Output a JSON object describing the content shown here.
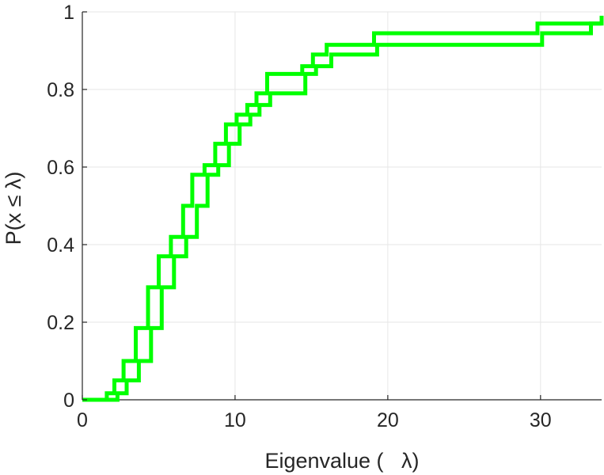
{
  "chart_data": {
    "type": "line",
    "title": "",
    "xlabel": "Eigenvalue (   λ)",
    "ylabel": "P(x ≤ λ)",
    "xlim": [
      0,
      34
    ],
    "ylim": [
      0,
      1
    ],
    "grid": true,
    "legend": "none",
    "x_ticks": [
      0,
      10,
      20,
      30
    ],
    "y_ticks": [
      0,
      0.2,
      0.4,
      0.6,
      0.8,
      1
    ],
    "x_tick_labels": [
      "0",
      "10",
      "20",
      "30"
    ],
    "y_tick_labels": [
      "0",
      "0.2",
      "0.4",
      "0.6",
      "0.8",
      "1"
    ],
    "series": [
      {
        "color": "#00ff00",
        "upper": {
          "x": [
            0,
            1.6,
            2.1,
            2.7,
            3.5,
            4.3,
            5.0,
            5.8,
            6.6,
            7.2,
            8.0,
            8.7,
            9.4,
            10.1,
            10.8,
            11.4,
            12.1,
            14.4,
            15.1,
            16.0,
            19.1,
            29.8,
            34
          ],
          "y": [
            0,
            0.017,
            0.05,
            0.1,
            0.185,
            0.29,
            0.37,
            0.42,
            0.5,
            0.58,
            0.605,
            0.66,
            0.71,
            0.735,
            0.76,
            0.79,
            0.84,
            0.86,
            0.89,
            0.915,
            0.945,
            0.97,
            0.99
          ]
        },
        "lower": {
          "x": [
            0,
            1.8,
            2.3,
            2.9,
            3.7,
            4.5,
            5.2,
            6.0,
            6.8,
            7.5,
            8.2,
            8.9,
            9.6,
            10.3,
            11.0,
            11.6,
            12.3,
            14.6,
            15.3,
            16.3,
            19.3,
            30.1,
            33.3,
            34
          ],
          "y": [
            0,
            0,
            0.017,
            0.05,
            0.1,
            0.185,
            0.29,
            0.37,
            0.42,
            0.5,
            0.58,
            0.605,
            0.66,
            0.71,
            0.735,
            0.76,
            0.79,
            0.84,
            0.86,
            0.89,
            0.915,
            0.945,
            0.97,
            0.97
          ]
        }
      }
    ],
    "colors": {
      "line": "#00ff00",
      "axis": "#262626",
      "grid": "#e6e6e6",
      "background": "#ffffff"
    }
  }
}
